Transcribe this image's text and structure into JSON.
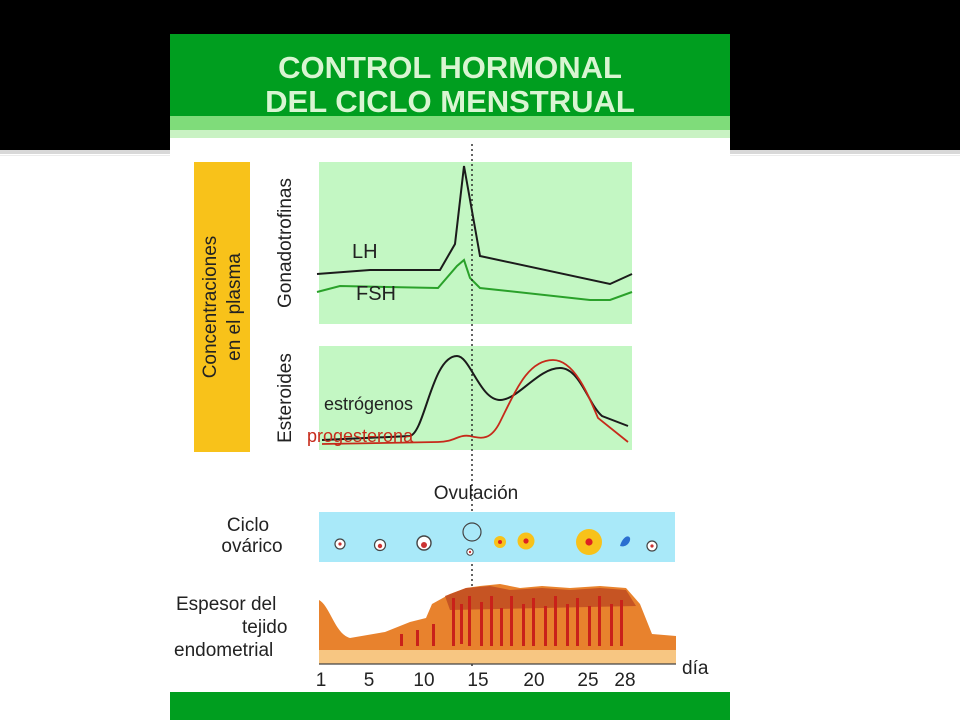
{
  "title": {
    "line1": "CONTROL HORMONAL",
    "line2": "DEL CICLO MENSTRUAL"
  },
  "side_label": {
    "line1": "Concentraciones",
    "line2": "en el plasma"
  },
  "gonadotropins": {
    "axis_label": "Gonadotrofinas",
    "lh_label": "LH",
    "fsh_label": "FSH"
  },
  "steroids": {
    "axis_label": "Esteroides",
    "estrogen_label": "estrógenos",
    "progesterone_label": "progesterona"
  },
  "ovulation_label": "Ovulación",
  "ovarian_cycle": {
    "line1": "Ciclo",
    "line2": "ovárico"
  },
  "endometrium": {
    "line1": "Espesor del",
    "line2": "tejido",
    "line3": "endometrial"
  },
  "day_axis": {
    "ticks": [
      "1",
      "5",
      "10",
      "15",
      "20",
      "25",
      "28"
    ],
    "unit": "día"
  },
  "colors": {
    "green": "#009e1f",
    "light_green": "#c3f7c3",
    "yellow": "#f8c21a",
    "light_blue": "#a9e9f9",
    "lh": "#1b1b1b",
    "fsh": "#2aa12a",
    "estrogen": "#1b1b1b",
    "progesterone": "#c62a1a",
    "endometrium_dark": "#c24f22",
    "endometrium_mid": "#e87a28",
    "endometrium_light": "#f6b55b"
  }
}
